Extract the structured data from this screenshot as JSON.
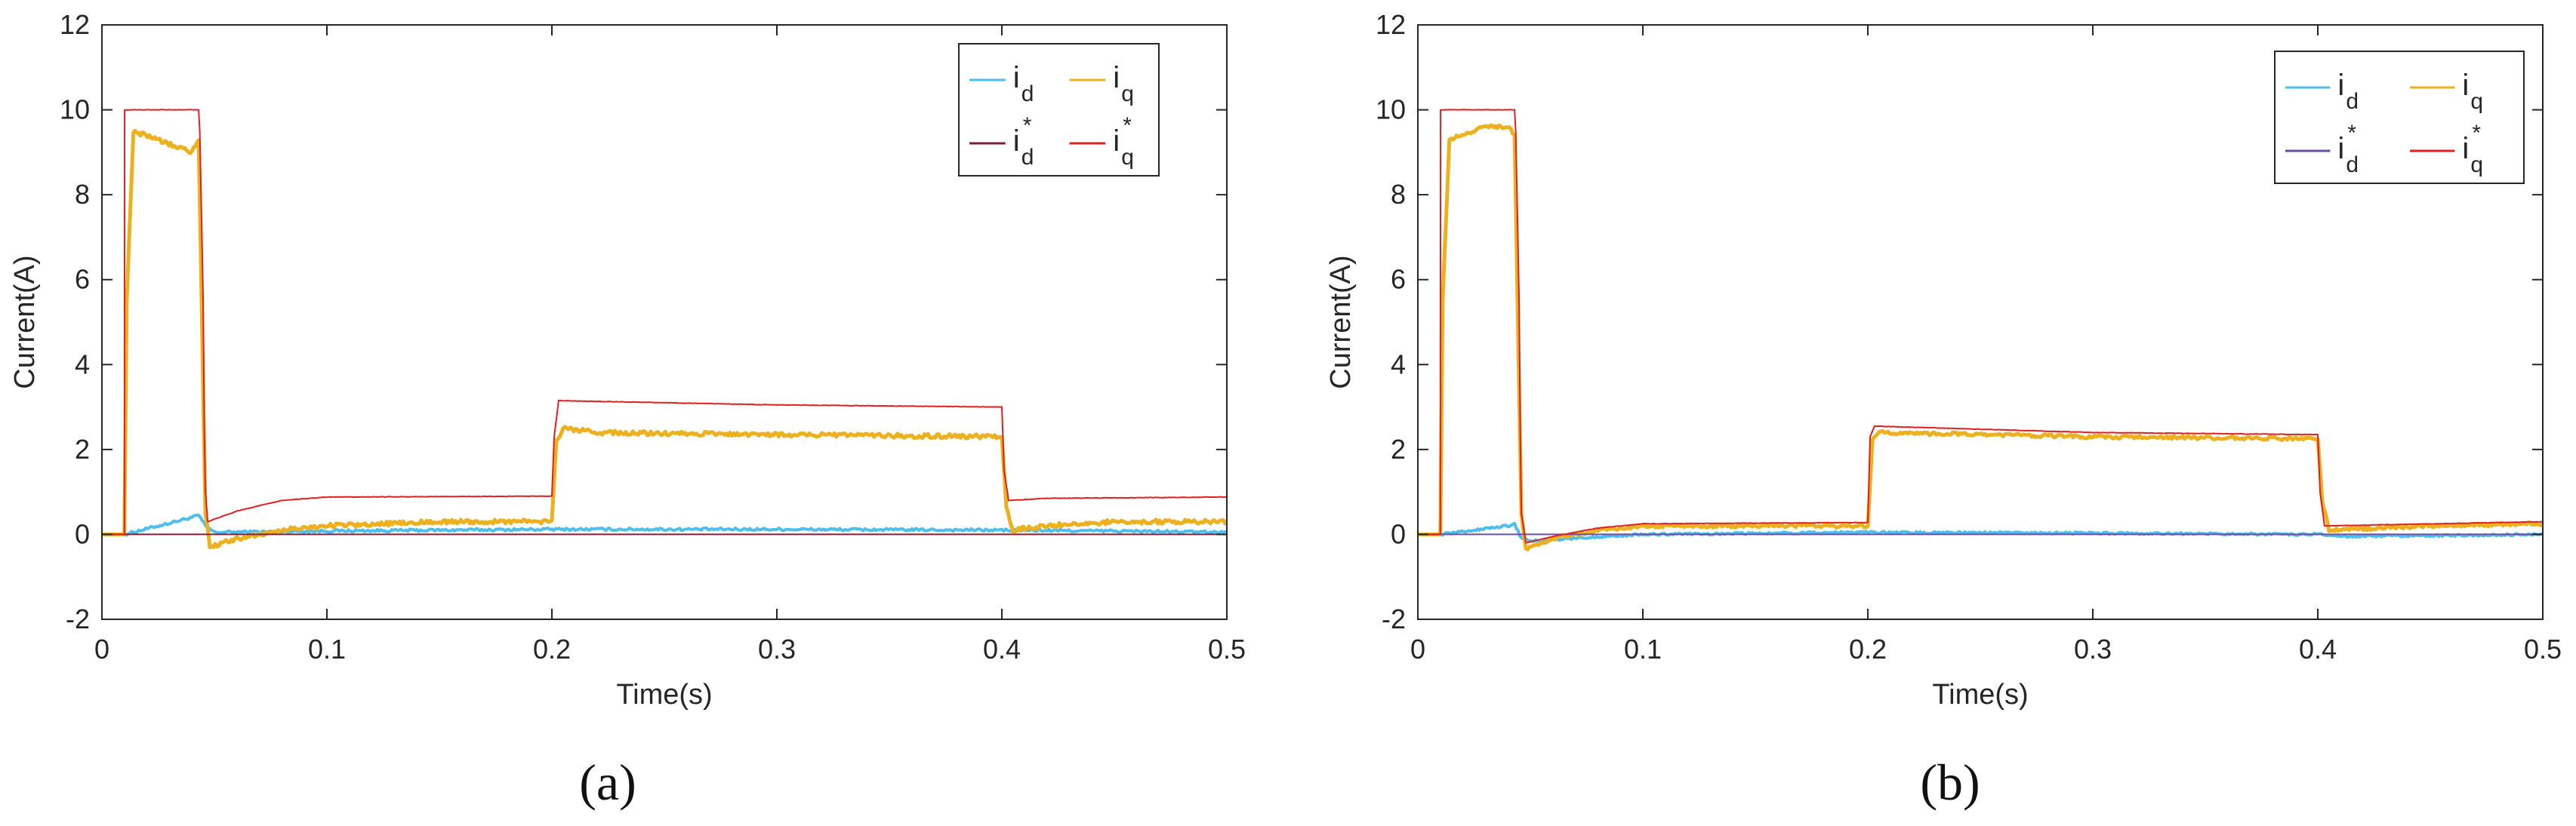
{
  "colors": {
    "id": "#4DBEEE",
    "iq": "#EDB120",
    "id_ref_a": "#7E1F3A",
    "id_ref_b": "#6B4FA0",
    "iq_ref": "#E02020",
    "axis": "#262626",
    "grid": "#cccccc"
  },
  "chart_data": [
    {
      "type": "line",
      "caption": "(a)",
      "xlabel": "Time(s)",
      "ylabel": "Current(A)",
      "xlim": [
        0,
        0.5
      ],
      "ylim": [
        -2,
        12
      ],
      "xticks": [
        "0",
        "0.1",
        "0.2",
        "0.3",
        "0.4",
        "0.5"
      ],
      "yticks": [
        "-2",
        "0",
        "2",
        "4",
        "6",
        "8",
        "10",
        "12"
      ],
      "legend": [
        {
          "base": "i",
          "sub": "d",
          "sup": ""
        },
        {
          "base": "i",
          "sub": "q",
          "sup": ""
        },
        {
          "base": "i",
          "sub": "d",
          "sup": "*"
        },
        {
          "base": "i",
          "sub": "q",
          "sup": "*"
        }
      ],
      "series": [
        {
          "name": "id",
          "color_key": "id",
          "width": 4,
          "noise": 0.06,
          "x": [
            0,
            0.01,
            0.04,
            0.043,
            0.046,
            0.05,
            0.1,
            0.2,
            0.3,
            0.4,
            0.45,
            0.5
          ],
          "y": [
            0,
            0,
            0.4,
            0.45,
            0.2,
            0.05,
            0.08,
            0.12,
            0.12,
            0.1,
            0.08,
            0.05
          ]
        },
        {
          "name": "iq",
          "color_key": "iq",
          "width": 5,
          "noise": 0.1,
          "x": [
            0,
            0.01,
            0.011,
            0.014,
            0.04,
            0.043,
            0.046,
            0.048,
            0.06,
            0.08,
            0.1,
            0.15,
            0.2,
            0.202,
            0.205,
            0.22,
            0.3,
            0.4,
            0.402,
            0.405,
            0.42,
            0.45,
            0.5
          ],
          "y": [
            0,
            0,
            5.5,
            9.5,
            9.0,
            9.3,
            0.5,
            -0.3,
            -0.1,
            0.1,
            0.2,
            0.3,
            0.3,
            2.2,
            2.5,
            2.4,
            2.35,
            2.3,
            0.6,
            0.1,
            0.2,
            0.3,
            0.3
          ]
        },
        {
          "name": "id_ref",
          "color_key": "id_ref_a",
          "width": 2,
          "noise": 0,
          "x": [
            0,
            0.5
          ],
          "y": [
            0,
            0
          ]
        },
        {
          "name": "iq_ref",
          "color_key": "iq_ref",
          "width": 2,
          "noise": 0.01,
          "x": [
            0,
            0.01,
            0.0101,
            0.043,
            0.0435,
            0.045,
            0.0455,
            0.046,
            0.047,
            0.06,
            0.08,
            0.1,
            0.2,
            0.201,
            0.203,
            0.3,
            0.4,
            0.401,
            0.403,
            0.42,
            0.5
          ],
          "y": [
            0,
            0,
            10,
            10,
            9.5,
            5.5,
            2.5,
            1.0,
            0.3,
            0.55,
            0.8,
            0.88,
            0.9,
            2.3,
            3.15,
            3.05,
            3.0,
            1.5,
            0.8,
            0.85,
            0.88
          ]
        }
      ]
    },
    {
      "type": "line",
      "caption": "(b)",
      "xlabel": "Time(s)",
      "ylabel": "Current(A)",
      "xlim": [
        0,
        0.5
      ],
      "ylim": [
        -2,
        12
      ],
      "xticks": [
        "0",
        "0.1",
        "0.2",
        "0.3",
        "0.4",
        "0.5"
      ],
      "yticks": [
        "-2",
        "0",
        "2",
        "4",
        "6",
        "8",
        "10",
        "12"
      ],
      "legend": [
        {
          "base": "i",
          "sub": "d",
          "sup": ""
        },
        {
          "base": "i",
          "sub": "q",
          "sup": ""
        },
        {
          "base": "i",
          "sub": "d",
          "sup": "*"
        },
        {
          "base": "i",
          "sub": "q",
          "sup": "*"
        }
      ],
      "series": [
        {
          "name": "id",
          "color_key": "id",
          "width": 4,
          "noise": 0.05,
          "x": [
            0,
            0.01,
            0.04,
            0.043,
            0.046,
            0.05,
            0.1,
            0.2,
            0.3,
            0.4,
            0.41,
            0.5
          ],
          "y": [
            0,
            0,
            0.2,
            0.25,
            -0.1,
            -0.15,
            0.0,
            0.05,
            0.03,
            0.0,
            -0.05,
            0.0
          ]
        },
        {
          "name": "iq",
          "color_key": "iq",
          "width": 5,
          "noise": 0.08,
          "x": [
            0,
            0.01,
            0.011,
            0.014,
            0.03,
            0.04,
            0.043,
            0.046,
            0.048,
            0.06,
            0.08,
            0.1,
            0.2,
            0.202,
            0.205,
            0.3,
            0.4,
            0.402,
            0.405,
            0.45,
            0.5
          ],
          "y": [
            0,
            0,
            5.5,
            9.3,
            9.6,
            9.6,
            9.4,
            0.5,
            -0.35,
            -0.1,
            0.1,
            0.2,
            0.2,
            2.2,
            2.4,
            2.3,
            2.25,
            0.8,
            0.1,
            0.2,
            0.25
          ]
        },
        {
          "name": "id_ref",
          "color_key": "id_ref_b",
          "width": 2,
          "noise": 0,
          "x": [
            0,
            0.5
          ],
          "y": [
            0,
            0
          ]
        },
        {
          "name": "iq_ref",
          "color_key": "iq_ref",
          "width": 2,
          "noise": 0.01,
          "x": [
            0,
            0.01,
            0.0101,
            0.043,
            0.0435,
            0.045,
            0.0455,
            0.046,
            0.048,
            0.06,
            0.08,
            0.1,
            0.2,
            0.201,
            0.203,
            0.3,
            0.4,
            0.401,
            0.403,
            0.5
          ],
          "y": [
            0,
            0,
            10,
            10,
            9.5,
            5.5,
            2.5,
            0.5,
            -0.2,
            -0.05,
            0.15,
            0.25,
            0.28,
            2.3,
            2.55,
            2.4,
            2.35,
            1.0,
            0.2,
            0.3
          ]
        }
      ]
    }
  ]
}
